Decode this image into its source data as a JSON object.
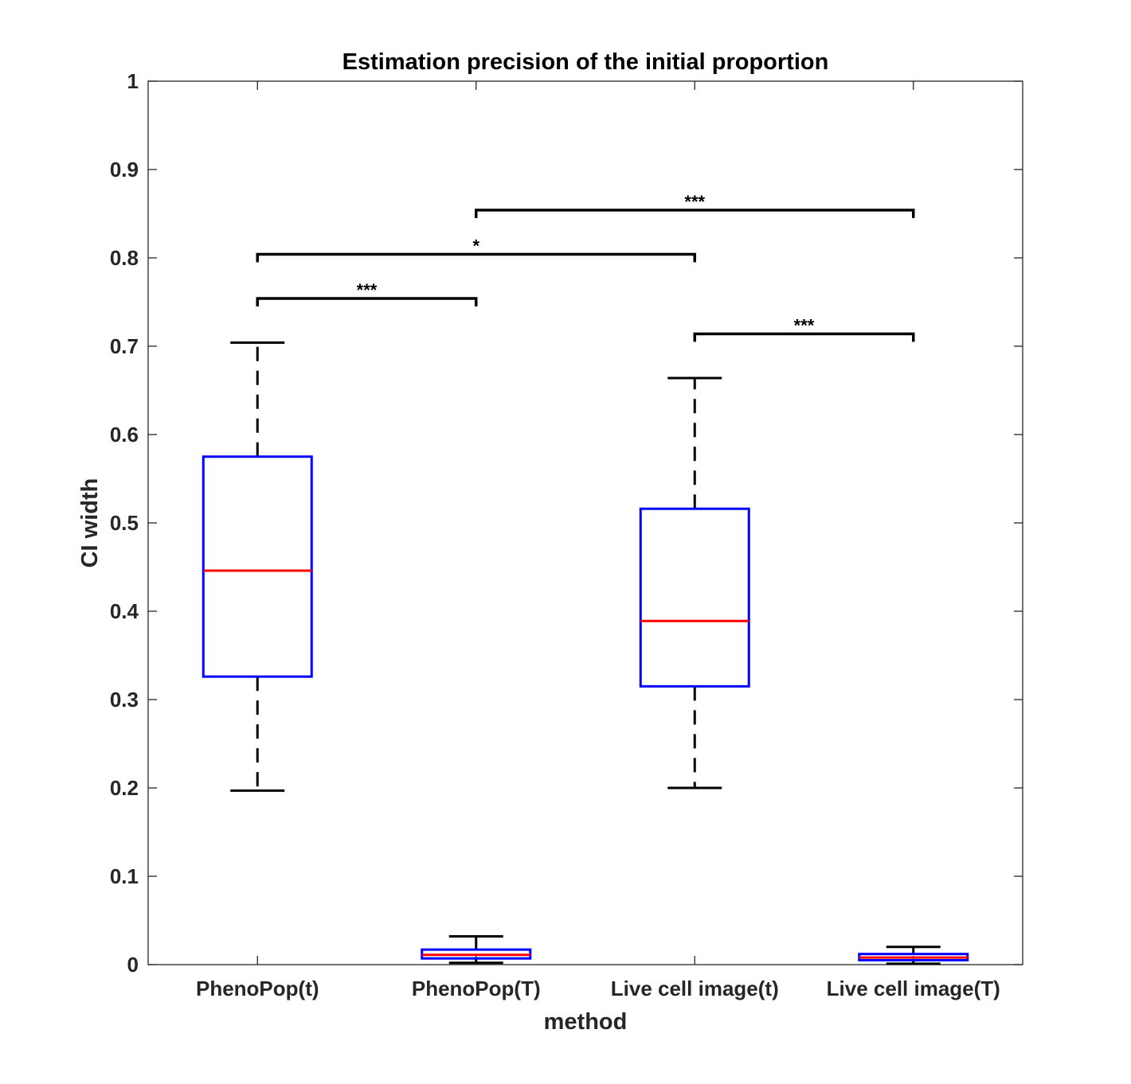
{
  "chart_data": {
    "type": "box",
    "title": "Estimation precision of the initial proportion",
    "xlabel": "method",
    "ylabel": "CI width",
    "ylim": [
      0,
      1
    ],
    "yticks": [
      0,
      0.1,
      0.2,
      0.3,
      0.4,
      0.5,
      0.6,
      0.7,
      0.8,
      0.9,
      1
    ],
    "ytick_labels": [
      "0",
      "0.1",
      "0.2",
      "0.3",
      "0.4",
      "0.5",
      "0.6",
      "0.7",
      "0.8",
      "0.9",
      "1"
    ],
    "grid": false,
    "categories": [
      "PhenoPop(t)",
      "PhenoPop(T)",
      "Live cell image(t)",
      "Live cell image(T)"
    ],
    "boxes": [
      {
        "min": 0.197,
        "q1": 0.326,
        "median": 0.446,
        "q3": 0.575,
        "max": 0.704
      },
      {
        "min": 0.002,
        "q1": 0.007,
        "median": 0.011,
        "q3": 0.017,
        "max": 0.032
      },
      {
        "min": 0.2,
        "q1": 0.315,
        "median": 0.389,
        "q3": 0.516,
        "max": 0.664
      },
      {
        "min": 0.001,
        "q1": 0.005,
        "median": 0.008,
        "q3": 0.012,
        "max": 0.02
      }
    ],
    "significance": [
      {
        "from": 0,
        "to": 1,
        "y": 0.754,
        "label": "***"
      },
      {
        "from": 0,
        "to": 2,
        "y": 0.804,
        "label": "*"
      },
      {
        "from": 1,
        "to": 3,
        "y": 0.854,
        "label": "***"
      },
      {
        "from": 2,
        "to": 3,
        "y": 0.714,
        "label": "***"
      }
    ],
    "colors": {
      "box": "#0000ff",
      "median": "#ff0000",
      "whisker": "#000000",
      "axis": "#262626"
    }
  }
}
